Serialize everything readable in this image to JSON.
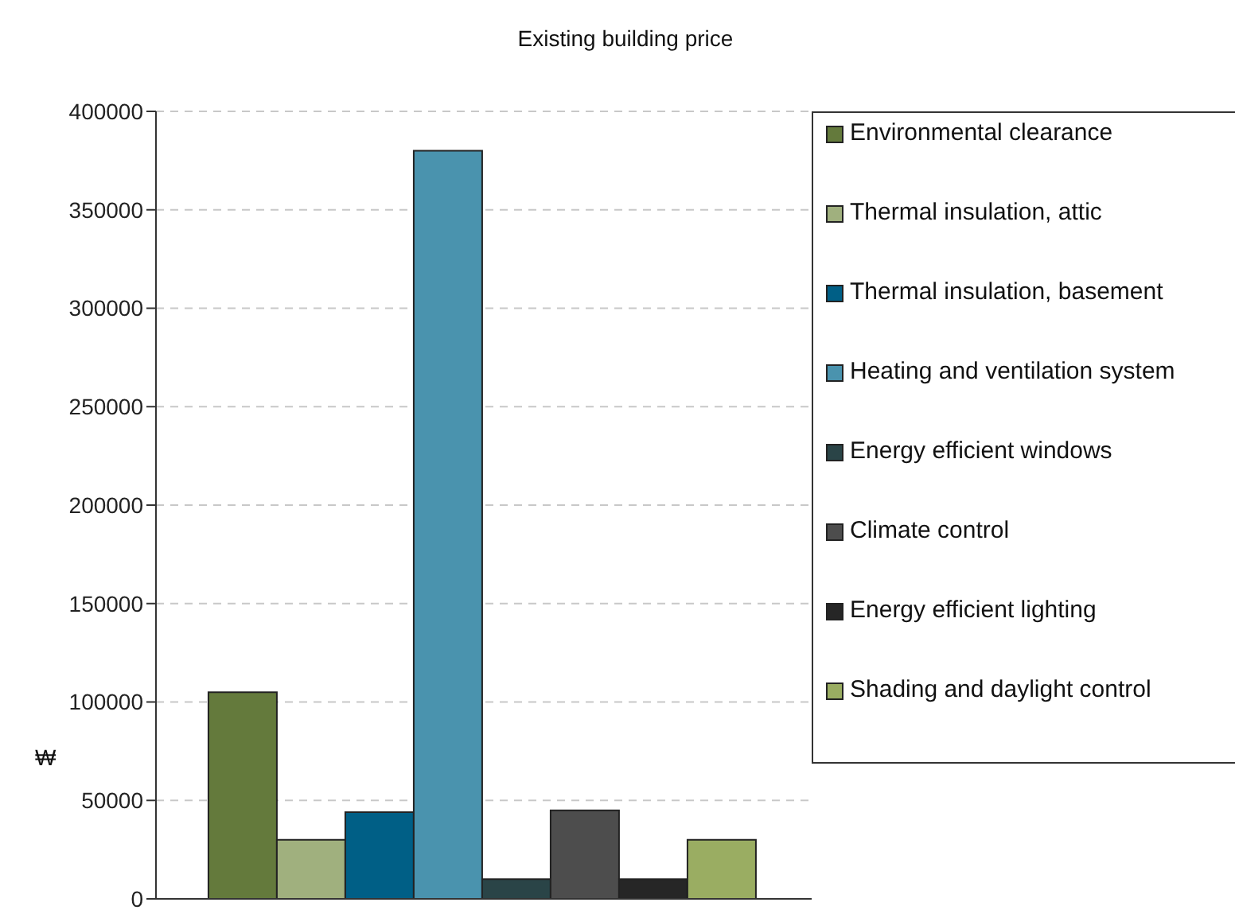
{
  "chart_data": {
    "type": "bar",
    "title": "Existing building price",
    "ylabel": "₩",
    "categories": [
      null
    ],
    "series": [
      {
        "name": "Environmental clearance",
        "color": "#647a3c",
        "values": [
          105000
        ]
      },
      {
        "name": "Thermal insulation, attic",
        "color": "#a0b07e",
        "values": [
          30000
        ]
      },
      {
        "name": "Thermal insulation, basement",
        "color": "#005f86",
        "values": [
          44000
        ]
      },
      {
        "name": "Heating and ventilation system",
        "color": "#4a93ae",
        "values": [
          380000
        ]
      },
      {
        "name": "Energy efficient windows",
        "color": "#2a4447",
        "values": [
          10000
        ]
      },
      {
        "name": "Climate control",
        "color": "#4d4d4d",
        "values": [
          45000
        ]
      },
      {
        "name": "Energy efficient lighting",
        "color": "#262626",
        "values": [
          10000
        ]
      },
      {
        "name": "Shading and daylight control",
        "color": "#9aad62",
        "values": [
          30000
        ]
      }
    ],
    "ylim": [
      0,
      400000
    ],
    "yticks": [
      0,
      50000,
      100000,
      150000,
      200000,
      250000,
      300000,
      350000,
      400000
    ],
    "grid": "y",
    "legend": "top right"
  }
}
